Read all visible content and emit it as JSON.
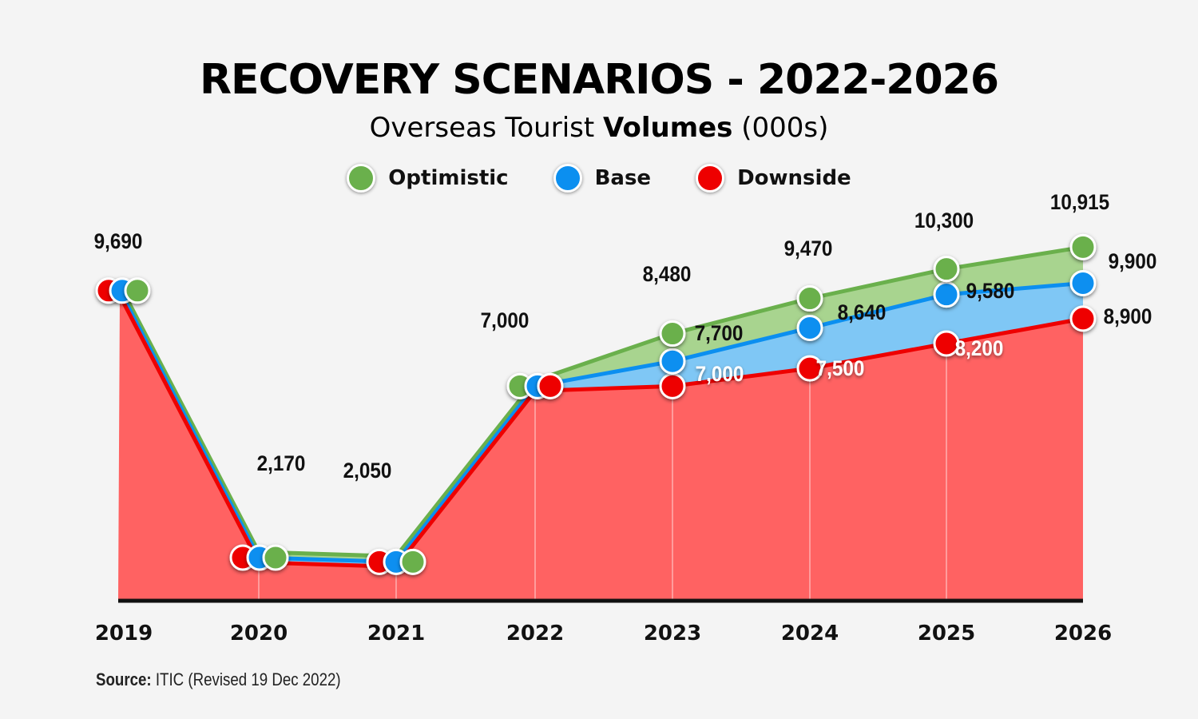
{
  "chart_data": {
    "type": "area",
    "title": "RECOVERY SCENARIOS - 2022-2026",
    "subtitle_part1": "Overseas Tourist",
    "subtitle_part2": "Volumes",
    "subtitle_part3": "(000s)",
    "categories": [
      "2019",
      "2020",
      "2021",
      "2022",
      "2023",
      "2024",
      "2025",
      "2026"
    ],
    "series": [
      {
        "name": "Optimistic",
        "color": "#6ab04c",
        "values": [
          9690,
          2170,
          2050,
          7000,
          8480,
          9470,
          10300,
          10915
        ],
        "labels": [
          "9,690",
          "2,170",
          "2,050",
          "7,000",
          "8,480",
          "9,470",
          "10,300",
          "10,915"
        ]
      },
      {
        "name": "Base",
        "color": "#0b8ff0",
        "values": [
          9690,
          2170,
          2050,
          7000,
          7700,
          8640,
          9580,
          9900
        ],
        "labels": [
          "",
          "",
          "",
          "",
          "7,700",
          "8,640",
          "9,580",
          "9,900"
        ]
      },
      {
        "name": "Downside",
        "color": "#ee0000",
        "values": [
          9690,
          2170,
          2050,
          7000,
          7000,
          7500,
          8200,
          8900
        ],
        "labels": [
          "",
          "",
          "",
          "",
          "7,000",
          "7,500",
          "8,200",
          "8,900"
        ]
      }
    ],
    "area_colors": {
      "Optimistic": "#a8d48f",
      "Base": "#7fc7f5",
      "Downside": "#ff6262"
    },
    "xlabel": "",
    "ylabel": "",
    "ylim": [
      0,
      12000
    ]
  },
  "source": {
    "label": "Source:",
    "text": "ITIC (Revised 19 Dec 2022)"
  }
}
